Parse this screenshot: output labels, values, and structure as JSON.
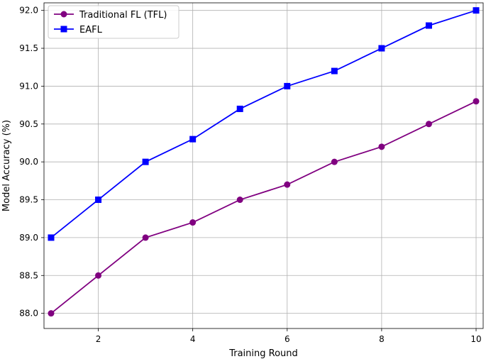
{
  "chart_data": {
    "type": "line",
    "title": "",
    "xlabel": "Training Round",
    "ylabel": "Model Accuracy (%)",
    "x": [
      1,
      2,
      3,
      4,
      5,
      6,
      7,
      8,
      9,
      10
    ],
    "xlim": [
      0.85,
      10.15
    ],
    "ylim": [
      87.8,
      92.1
    ],
    "xticks": [
      2,
      4,
      6,
      8,
      10
    ],
    "yticks": [
      "88.0",
      "88.5",
      "89.0",
      "89.5",
      "90.0",
      "90.5",
      "91.0",
      "91.5",
      "92.0"
    ],
    "grid": true,
    "legend_position": "top-left",
    "series": [
      {
        "name": "Traditional FL (TFL)",
        "color": "#800080",
        "marker": "circle",
        "values": [
          88.0,
          88.5,
          89.0,
          89.2,
          89.5,
          89.7,
          90.0,
          90.2,
          90.5,
          90.8
        ]
      },
      {
        "name": "EAFL",
        "color": "#0000ff",
        "marker": "square",
        "values": [
          89.0,
          89.5,
          90.0,
          90.3,
          90.7,
          91.0,
          91.2,
          91.5,
          91.8,
          92.0
        ]
      }
    ]
  }
}
